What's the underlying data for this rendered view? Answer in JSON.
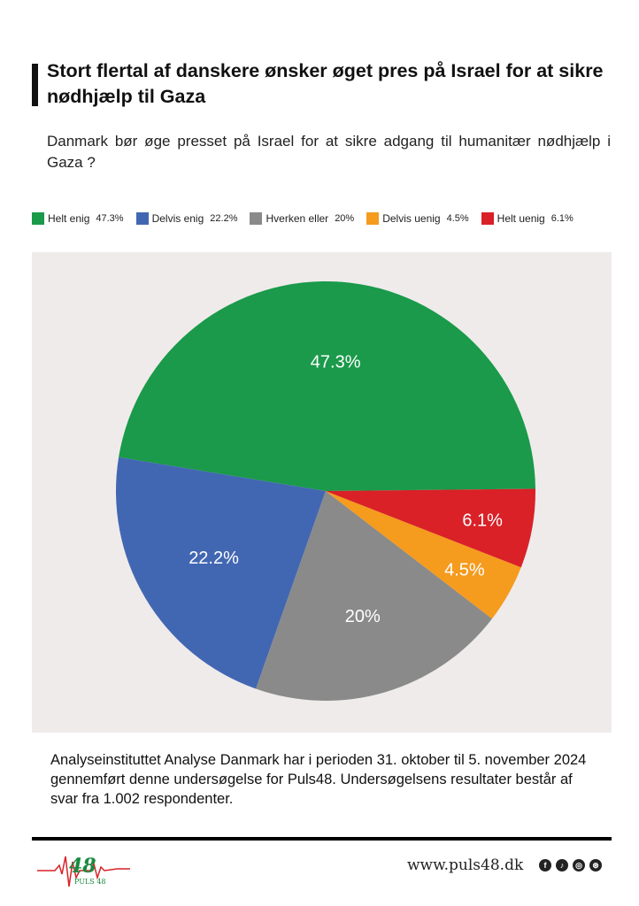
{
  "title": "Stort flertal af danskere ønsker øget pres på Israel for at sikre nødhjælp til Gaza",
  "subtitle": "Danmark bør øge presset på Israel for at sikre adgang til humanitær nødhjælp i Gaza ?",
  "chart_data": {
    "type": "pie",
    "categories": [
      "Helt enig",
      "Delvis enig",
      "Hverken eller",
      "Delvis uenig",
      "Helt uenig"
    ],
    "values": [
      47.3,
      22.2,
      20,
      4.5,
      6.1
    ],
    "value_labels": [
      "47.3%",
      "22.2%",
      "20%",
      "4.5%",
      "6.1%"
    ],
    "colors": [
      "#1a9a4a",
      "#4267b2",
      "#8a8a8a",
      "#f59b1e",
      "#d92127"
    ],
    "legend_placement": "top",
    "legend": [
      {
        "label": "Helt enig",
        "value": "47.3%"
      },
      {
        "label": "Delvis enig",
        "value": "22.2%"
      },
      {
        "label": "Hverken eller",
        "value": "20%"
      },
      {
        "label": "Delvis uenig",
        "value": "4.5%"
      },
      {
        "label": "Helt uenig",
        "value": "6.1%"
      }
    ]
  },
  "note": "Analyseinstituttet Analyse Danmark har i perioden 31. oktober til 5. november 2024 gennemført denne undersøgelse for Puls48. Undersøgelsens resultater består af svar fra 1.002 respondenter.",
  "footer": {
    "logo_text": "PULS 48",
    "logo_number": "48",
    "url": "www.puls48.dk",
    "social_icons": [
      "facebook-icon",
      "tiktok-icon",
      "instagram-icon",
      "dribbble-icon"
    ]
  }
}
